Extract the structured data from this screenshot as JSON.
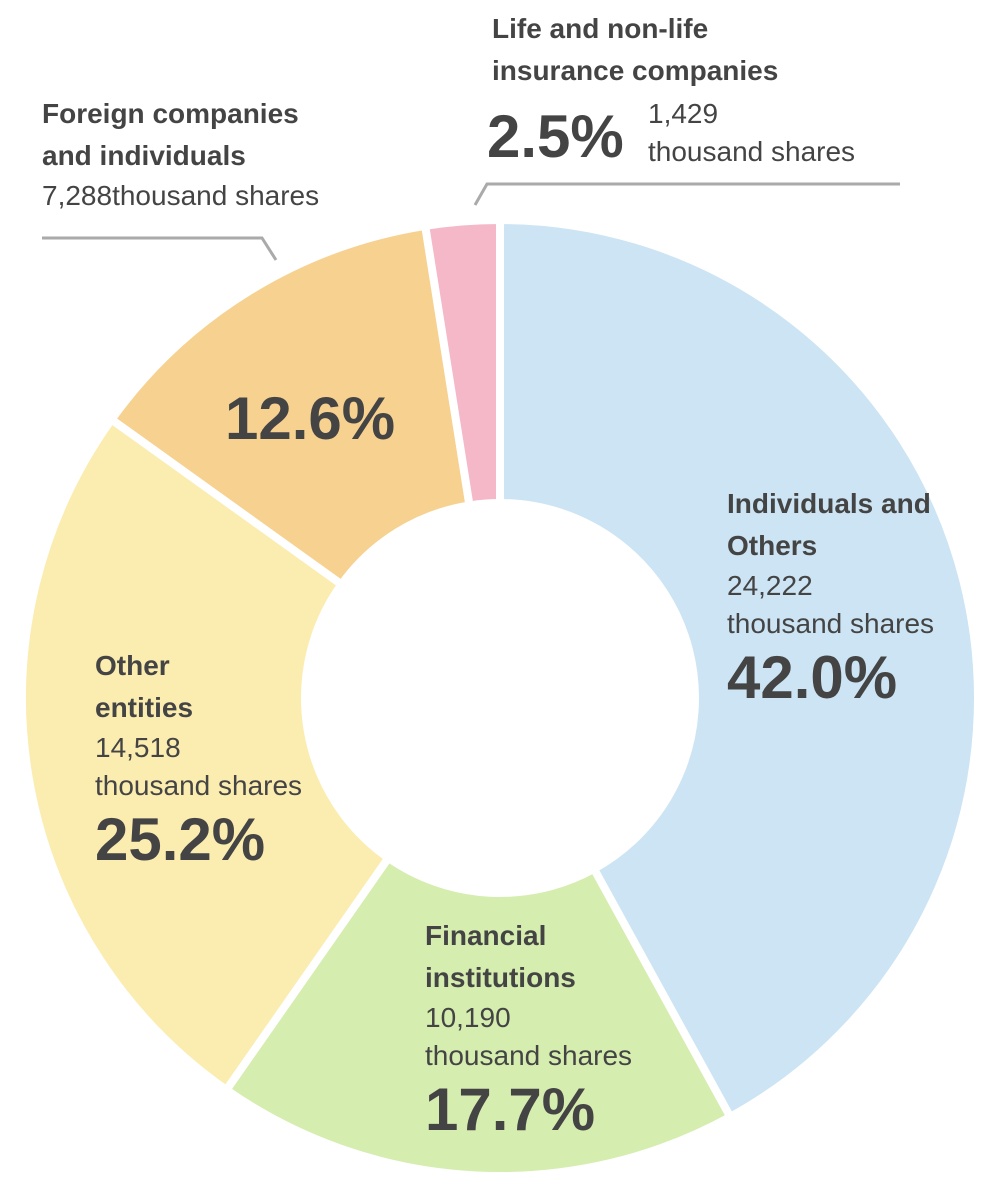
{
  "chart_data": {
    "type": "donut",
    "categories": [
      "Individuals and Others",
      "Financial institutions",
      "Other entities",
      "Foreign companies and individuals",
      "Life and non-life insurance companies"
    ],
    "values": [
      42.0,
      17.7,
      25.2,
      12.6,
      2.5
    ],
    "value_labels": [
      "42.0%",
      "17.7%",
      "25.2%",
      "12.6%",
      "2.5%"
    ],
    "shares": [
      "24,222",
      "10,190",
      "14,518",
      "7,288",
      "1,429"
    ],
    "shares_unit": "thousand shares",
    "colors": [
      "#cce4f3",
      "#d6edb0",
      "#fbecb0",
      "#f7d18f",
      "#f4b8c8"
    ]
  }
}
